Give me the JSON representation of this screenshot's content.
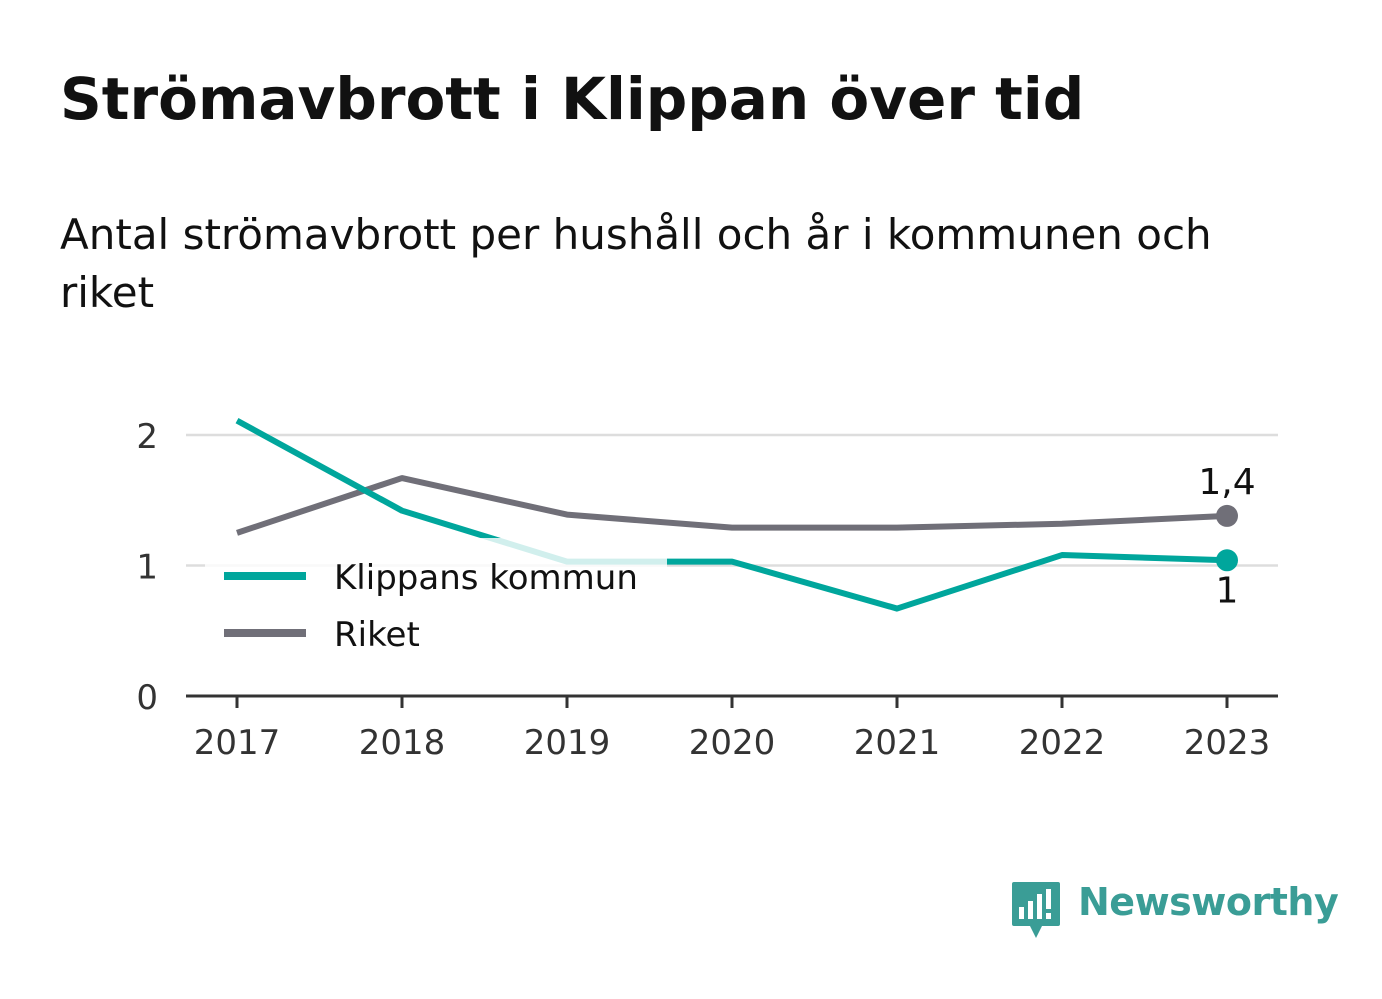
{
  "title": "Strömavbrott i Klippan över tid",
  "subtitle": "Antal strömavbrott per hushåll och år i kommunen och riket",
  "brand": {
    "name": "Newsworthy",
    "color": "#3a9d96",
    "icon": "newsworthy-logo-icon"
  },
  "chart_data": {
    "type": "line",
    "x": [
      "2017",
      "2018",
      "2019",
      "2020",
      "2021",
      "2022",
      "2023"
    ],
    "y_ticks": [
      "0",
      "1",
      "2"
    ],
    "ylim": [
      0,
      2.2
    ],
    "grid": true,
    "legend_position": "left",
    "series": [
      {
        "name": "Klippans kommun",
        "color": "#00a69c",
        "values": [
          2.11,
          1.42,
          1.03,
          1.03,
          0.67,
          1.08,
          1.04
        ],
        "end_label": "1"
      },
      {
        "name": "Riket",
        "color": "#706f78",
        "values": [
          1.25,
          1.67,
          1.39,
          1.29,
          1.29,
          1.32,
          1.38
        ],
        "end_label": "1,4"
      }
    ]
  }
}
